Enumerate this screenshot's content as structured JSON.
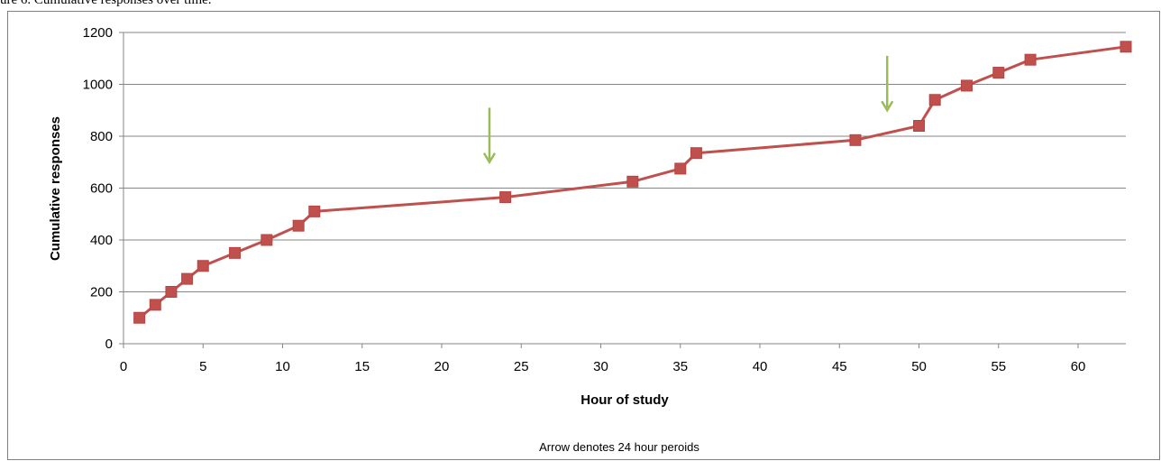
{
  "caption": "ure 6. Cumulative responses over time.",
  "chart_data": {
    "type": "line",
    "title": "",
    "xlabel": "Hour of study",
    "ylabel": "Cumulative responses",
    "xlim": [
      0,
      63
    ],
    "ylim": [
      0,
      1200
    ],
    "xticks": [
      0,
      5,
      10,
      15,
      20,
      25,
      30,
      35,
      40,
      45,
      50,
      55,
      60
    ],
    "yticks": [
      0,
      200,
      400,
      600,
      800,
      1000,
      1200
    ],
    "grid": "horizontal",
    "legend": "none",
    "series": [
      {
        "color": "#c0504d",
        "marker": "square",
        "x": [
          1,
          2,
          3,
          4,
          5,
          7,
          9,
          11,
          12,
          24,
          32,
          35,
          36,
          46,
          50,
          51,
          53,
          55,
          57,
          63
        ],
        "y": [
          100,
          150,
          200,
          250,
          300,
          350,
          400,
          455,
          510,
          565,
          625,
          675,
          735,
          785,
          840,
          940,
          995,
          1045,
          1095,
          1145
        ]
      }
    ],
    "arrows": {
      "color": "#9bbb59",
      "x": [
        23,
        48
      ],
      "y_top": [
        910,
        1110
      ],
      "y_bottom": [
        700,
        900
      ]
    },
    "note": "Arrow denotes 24 hour peroids"
  }
}
